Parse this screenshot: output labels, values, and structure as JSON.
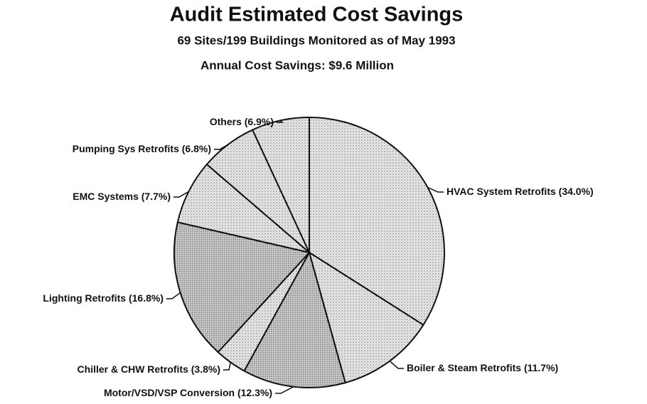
{
  "chart_data": {
    "type": "pie",
    "title": "Audit Estimated Cost Savings",
    "subtitle": "69 Sites/199 Buildings Monitored as of May 1993",
    "annotation": "Annual Cost Savings: $9.6 Million",
    "categories": [
      "HVAC System Retrofits",
      "Boiler & Steam Retrofits",
      "Motor/VSD/VSP Conversion",
      "Chiller & CHW Retrofits",
      "Lighting Retrofits",
      "EMC Systems",
      "Pumping Sys Retrofits",
      "Others"
    ],
    "values": [
      34.0,
      11.7,
      12.3,
      3.8,
      16.8,
      7.7,
      6.8,
      6.9
    ],
    "value_labels": [
      "(34.0%)",
      "(11.7%)",
      "(12.3%)",
      "(3.8%)",
      "(16.8%)",
      "(7.7%)",
      "(6.8%)",
      "(6.9%)"
    ]
  }
}
